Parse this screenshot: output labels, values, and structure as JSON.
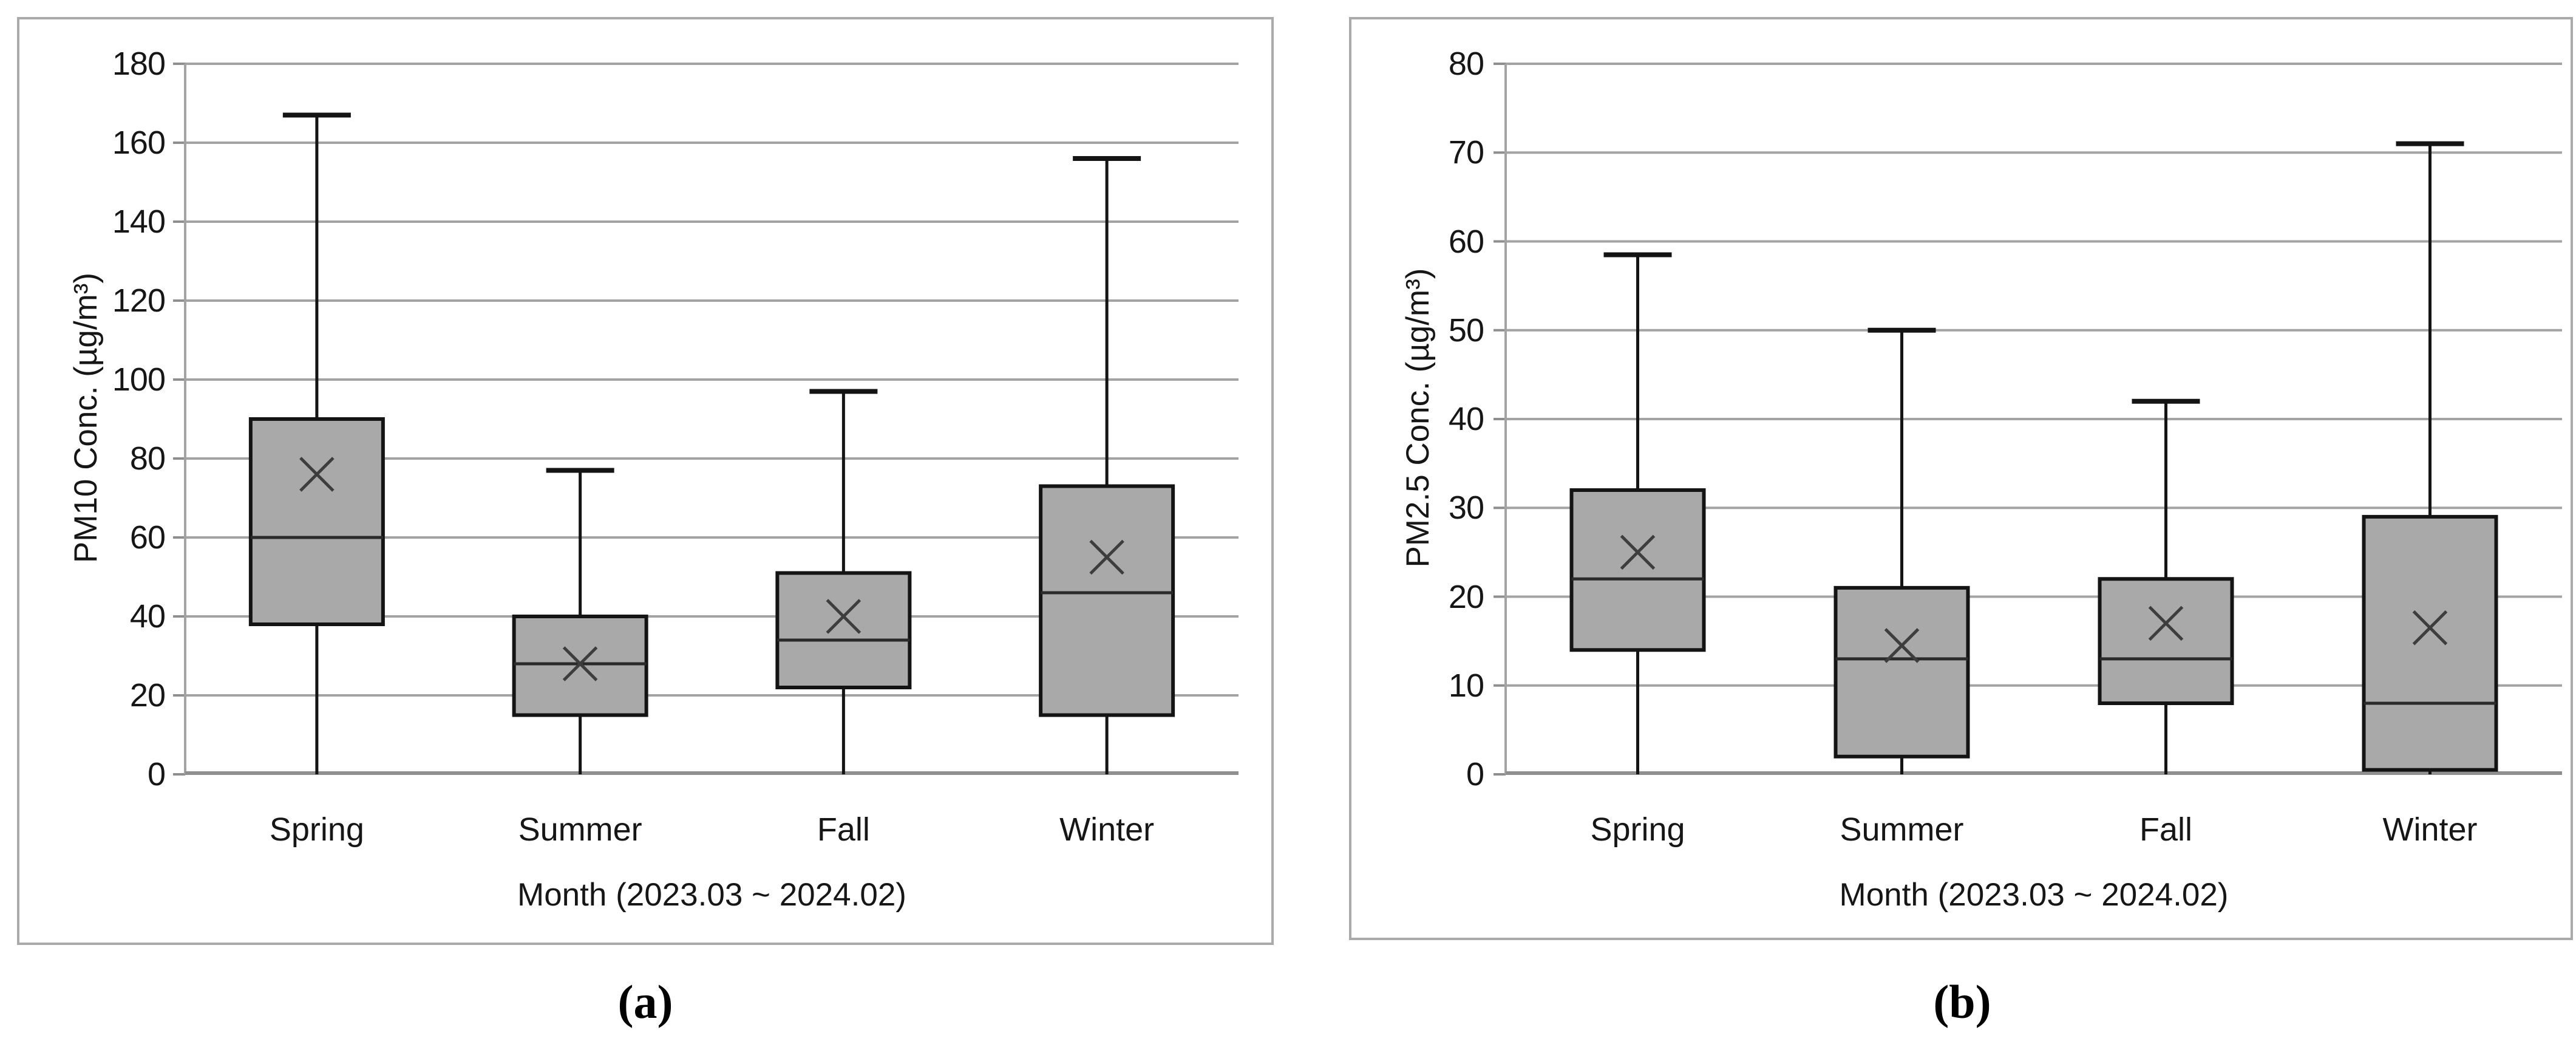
{
  "figure": {
    "caption_a": "(a)",
    "caption_b": "(b)",
    "colors": {
      "box_fill": "#a9a9a9",
      "box_border": "#141414",
      "whisker": "#141414",
      "median": "#2a2a2a",
      "mean_marker": "#3d3d3d",
      "gridline": "#a3a3a3",
      "axis_line": "#8f8f8f",
      "panel_border": "#aaaaaa",
      "text": "#161616"
    },
    "mean_marker_symbol": "×"
  },
  "chart_data": [
    {
      "type": "box",
      "name": "pm10-seasonal-boxplot",
      "title": "",
      "ylabel": "PM10  Conc. (µg/m³)",
      "xlabel": "Month (2023.03 ~ 2024.02)",
      "categories": [
        "Spring",
        "Summer",
        "Fall",
        "Winter"
      ],
      "ylim": [
        0,
        180
      ],
      "yticks": [
        0,
        20,
        40,
        60,
        80,
        100,
        120,
        140,
        160,
        180
      ],
      "grid": true,
      "series": [
        {
          "category": "Spring",
          "min": 0,
          "q1": 38,
          "median": 60,
          "q3": 90,
          "max": 167,
          "mean": 76
        },
        {
          "category": "Summer",
          "min": 0,
          "q1": 15,
          "median": 28,
          "q3": 40,
          "max": 77,
          "mean": 28
        },
        {
          "category": "Fall",
          "min": 0,
          "q1": 22,
          "median": 34,
          "q3": 51,
          "max": 97,
          "mean": 40
        },
        {
          "category": "Winter",
          "min": 0,
          "q1": 15,
          "median": 46,
          "q3": 73,
          "max": 156,
          "mean": 55
        }
      ]
    },
    {
      "type": "box",
      "name": "pm25-seasonal-boxplot",
      "title": "",
      "ylabel": "PM2.5  Conc. (µg/m³)",
      "xlabel": "Month (2023.03 ~ 2024.02)",
      "categories": [
        "Spring",
        "Summer",
        "Fall",
        "Winter"
      ],
      "ylim": [
        0,
        80
      ],
      "yticks": [
        0,
        10,
        20,
        30,
        40,
        50,
        60,
        70,
        80
      ],
      "grid": true,
      "series": [
        {
          "category": "Spring",
          "min": 0,
          "q1": 14,
          "median": 22,
          "q3": 32,
          "max": 58.5,
          "mean": 25
        },
        {
          "category": "Summer",
          "min": 0,
          "q1": 2,
          "median": 13,
          "q3": 21,
          "max": 50,
          "mean": 14.5
        },
        {
          "category": "Fall",
          "min": 0,
          "q1": 8,
          "median": 13,
          "q3": 22,
          "max": 42,
          "mean": 17
        },
        {
          "category": "Winter",
          "min": 0,
          "q1": 0.5,
          "median": 8,
          "q3": 29,
          "max": 71,
          "mean": 16.5
        }
      ]
    }
  ]
}
